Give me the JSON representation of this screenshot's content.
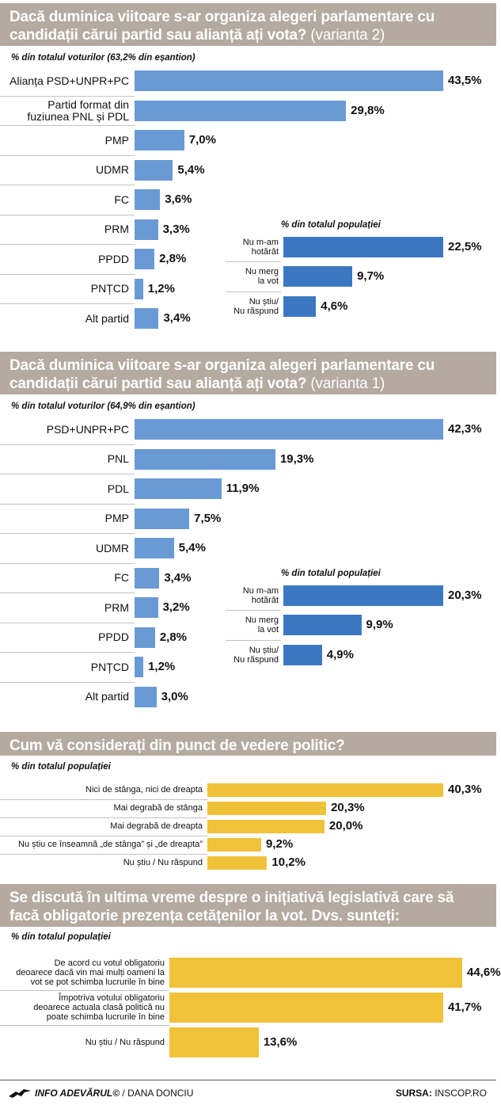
{
  "chart_data": [
    {
      "type": "bar",
      "title": "Dacă duminica viitoare s-ar organiza alegeri parlamentare cu candidații cărui partid sau alianță ați vota?",
      "variant": "(varianta 2)",
      "sublabel": "% din totalul voturilor (63,2% din eșantion)",
      "categories": [
        "Alianța PSD+UNPR+PC",
        "Partid format din fuziunea PNL și PDL",
        "PMP",
        "UDMR",
        "FC",
        "PRM",
        "PPDD",
        "PNȚCD",
        "Alt partid"
      ],
      "category_lines": [
        [
          "Alianța PSD+UNPR+PC"
        ],
        [
          "Partid format din",
          "fuziunea PNL și PDL"
        ],
        [
          "PMP"
        ],
        [
          "UDMR"
        ],
        [
          "FC"
        ],
        [
          "PRM"
        ],
        [
          "PPDD"
        ],
        [
          "PNȚCD"
        ],
        [
          "Alt partid"
        ]
      ],
      "values": [
        43.5,
        29.8,
        7.0,
        5.4,
        3.6,
        3.3,
        2.8,
        1.2,
        3.4
      ],
      "labels": [
        "43,5%",
        "29,8%",
        "7,0%",
        "5,4%",
        "3,6%",
        "3,3%",
        "2,8%",
        "1,2%",
        "3,4%"
      ],
      "color": "#6a9ad6",
      "inset": {
        "sublabel": "% din totalul populației",
        "categories": [
          [
            "Nu m-am",
            "hotărât"
          ],
          [
            "Nu merg",
            "la vot"
          ],
          [
            "Nu știu/",
            "Nu răspund"
          ]
        ],
        "values": [
          22.5,
          9.7,
          4.6
        ],
        "labels": [
          "22,5%",
          "9,7%",
          "4,6%"
        ],
        "color": "#3c78c2"
      }
    },
    {
      "type": "bar",
      "title": "Dacă duminica viitoare s-ar organiza alegeri parlamentare cu candidații cărui partid sau alianță ați vota?",
      "variant": "(varianta 1)",
      "sublabel": "% din totalul voturilor (64,9% din eșantion)",
      "categories": [
        "PSD+UNPR+PC",
        "PNL",
        "PDL",
        "PMP",
        "UDMR",
        "FC",
        "PRM",
        "PPDD",
        "PNȚCD",
        "Alt partid"
      ],
      "values": [
        42.3,
        19.3,
        11.9,
        7.5,
        5.4,
        3.4,
        3.2,
        2.8,
        1.2,
        3.0
      ],
      "labels": [
        "42,3%",
        "19,3%",
        "11,9%",
        "7,5%",
        "5,4%",
        "3,4%",
        "3,2%",
        "2,8%",
        "1,2%",
        "3,0%"
      ],
      "color": "#6a9ad6",
      "inset": {
        "sublabel": "% din totalul populației",
        "categories": [
          [
            "Nu m-am",
            "hotărât"
          ],
          [
            "Nu merg",
            "la vot"
          ],
          [
            "Nu știu/",
            "Nu răspund"
          ]
        ],
        "values": [
          20.3,
          9.9,
          4.9
        ],
        "labels": [
          "20,3%",
          "9,9%",
          "4,9%"
        ],
        "color": "#3c78c2"
      }
    },
    {
      "type": "bar",
      "title": "Cum vă considerați din punct de vedere politic?",
      "sublabel": "% din totalul populației",
      "categories": [
        "Nici de stânga, nici de dreapta",
        "Mai degrabă de stânga",
        "Mai degrabă de dreapta",
        "Nu știu ce înseamnă „de stânga” și „de dreapta”",
        "Nu știu / Nu răspund"
      ],
      "values": [
        40.3,
        20.3,
        20.0,
        9.2,
        10.2
      ],
      "labels": [
        "40,3%",
        "20,3%",
        "20,0%",
        "9,2%",
        "10,2%"
      ],
      "color": "#f0c23a"
    },
    {
      "type": "bar",
      "title": "Se discută în ultima vreme despre o inițiativă legislativă care să facă obligatorie prezența cetățenilor la vot. Dvs. sunteți:",
      "sublabel": "% din totalul populației",
      "category_lines": [
        [
          "De acord cu votul obligatoriu",
          "deoarece dacă vin mai mulți oameni la",
          "vot se pot schimba lucrurile în bine"
        ],
        [
          "Împotriva votului obligatoriu",
          "deoarece actuala clasă politică nu",
          "poate schimba lucrurile în bine"
        ],
        [
          "Nu știu / Nu răspund"
        ]
      ],
      "values": [
        44.6,
        41.7,
        13.6
      ],
      "labels": [
        "44,6%",
        "41,7%",
        "13,6%"
      ],
      "color": "#f0c23a"
    }
  ],
  "footer": {
    "left_bold": "INFO ADEVĂRUL©",
    "left_rest": " / DANA DONCIU",
    "right_bold": "SURSA:",
    "right_rest": " INSCOP.RO"
  }
}
